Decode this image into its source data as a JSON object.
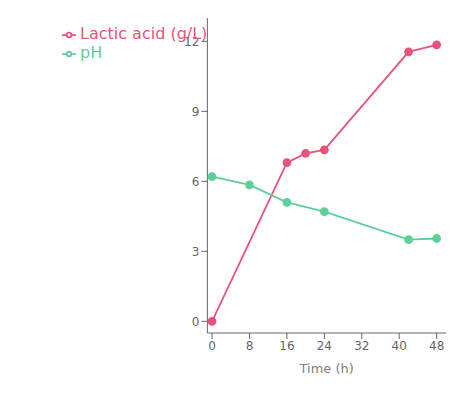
{
  "chart_data": {
    "type": "line",
    "xlabel": "Time (h)",
    "series": [
      {
        "name": "Lactic acid (g/L)",
        "color": "#e8537a",
        "marker": "circle",
        "x": [
          0,
          16,
          20,
          24,
          42,
          48
        ],
        "values": [
          0.0,
          6.8,
          7.2,
          7.35,
          11.55,
          11.85
        ]
      },
      {
        "name": "pH",
        "color": "#5ecf99",
        "marker": "circle",
        "x": [
          0,
          8,
          16,
          24,
          42,
          48
        ],
        "values": [
          6.2,
          5.85,
          5.1,
          4.7,
          3.5,
          3.55
        ]
      }
    ],
    "xlim": [
      -1,
      50
    ],
    "ylim": [
      -0.5,
      13.0
    ],
    "xticks": [
      0,
      8,
      16,
      24,
      32,
      40,
      48
    ],
    "yticks": [
      0,
      3,
      6,
      9,
      12
    ],
    "grid": false,
    "legend": "upper left"
  }
}
